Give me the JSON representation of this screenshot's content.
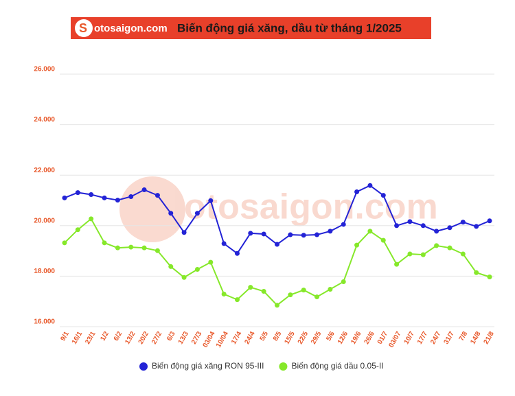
{
  "chart_data": {
    "type": "line",
    "logo": "otosaigon.com",
    "title": "Biến động giá xăng, dầu từ tháng 1/2025",
    "categories": [
      "9/1",
      "16/1",
      "23/1",
      "1/2",
      "6/2",
      "13/2",
      "20/2",
      "27/2",
      "6/3",
      "13/3",
      "27/3",
      "03/04",
      "10/04",
      "17/4",
      "24/4",
      "5/5",
      "8/5",
      "15/5",
      "22/5",
      "29/5",
      "5/6",
      "12/6",
      "19/6",
      "26/6",
      "01/7",
      "03/07",
      "10/7",
      "17/7",
      "24/7",
      "31/7",
      "7/8",
      "14/8",
      "21/8"
    ],
    "series": [
      {
        "name": "Biến động giá xăng RON 95-III",
        "color": "#2323d6",
        "values": [
          21100,
          21310,
          21230,
          21100,
          21010,
          21150,
          21420,
          21200,
          20490,
          19730,
          20490,
          20990,
          19290,
          18900,
          19700,
          19670,
          19260,
          19640,
          19620,
          19640,
          19780,
          20050,
          21340,
          21590,
          21200,
          20000,
          20160,
          20000,
          19780,
          19920,
          20140,
          19970,
          20190
        ]
      },
      {
        "name": "Biến động giá dầu 0.05-II",
        "color": "#86e82a",
        "values": [
          19320,
          19840,
          20270,
          19320,
          19120,
          19150,
          19120,
          19010,
          18380,
          17950,
          18270,
          18550,
          17290,
          17070,
          17560,
          17400,
          16850,
          17260,
          17450,
          17180,
          17480,
          17780,
          19230,
          19780,
          19420,
          18470,
          18880,
          18850,
          19210,
          19120,
          18880,
          18140,
          17970
        ]
      }
    ],
    "ylim": [
      16000,
      26000
    ],
    "yticks": [
      {
        "value": 16000,
        "label": "16.000"
      },
      {
        "value": 18000,
        "label": "18.000"
      },
      {
        "value": 20000,
        "label": "20.000"
      },
      {
        "value": 22000,
        "label": "22.000"
      },
      {
        "value": 24000,
        "label": "24.000"
      },
      {
        "value": 26000,
        "label": "26.000"
      }
    ],
    "grid": true
  }
}
